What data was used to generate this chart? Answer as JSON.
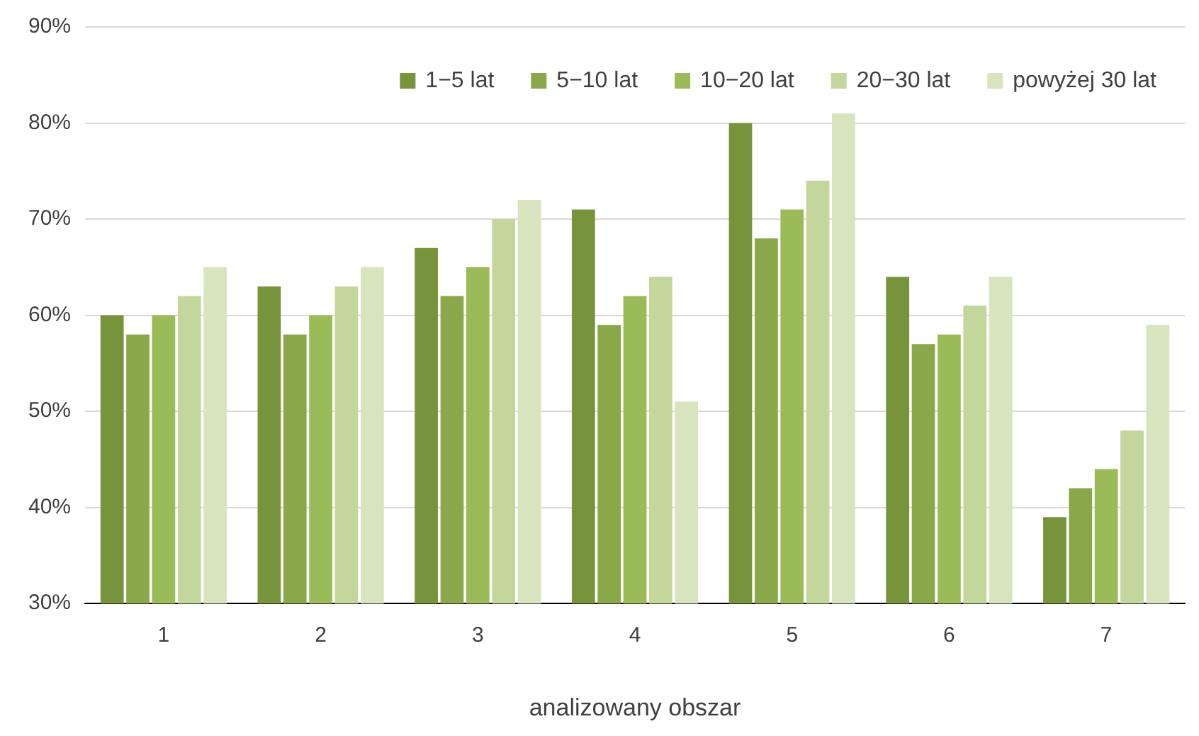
{
  "chart_data": {
    "type": "bar",
    "xlabel": "analizowany obszar",
    "categories": [
      "1",
      "2",
      "3",
      "4",
      "5",
      "6",
      "7"
    ],
    "series": [
      {
        "name": "1−5 lat",
        "color": "#77933c",
        "values": [
          60,
          63,
          67,
          71,
          80,
          64,
          39
        ]
      },
      {
        "name": "5−10 lat",
        "color": "#8aa84a",
        "values": [
          58,
          58,
          62,
          59,
          68,
          57,
          42
        ]
      },
      {
        "name": "10−20 lat",
        "color": "#9bbb59",
        "values": [
          60,
          60,
          65,
          62,
          71,
          58,
          44
        ]
      },
      {
        "name": "20−30 lat",
        "color": "#c3d69b",
        "values": [
          62,
          63,
          70,
          64,
          74,
          61,
          48
        ]
      },
      {
        "name": "powyżej 30 lat",
        "color": "#d7e4bd",
        "values": [
          65,
          65,
          72,
          51,
          81,
          64,
          59
        ]
      }
    ],
    "ylim": [
      30,
      90
    ],
    "yticks": [
      {
        "value": 30,
        "label": "30%"
      },
      {
        "value": 40,
        "label": "40%"
      },
      {
        "value": 50,
        "label": "50%"
      },
      {
        "value": 60,
        "label": "60%"
      },
      {
        "value": 70,
        "label": "70%"
      },
      {
        "value": 80,
        "label": "80%"
      },
      {
        "value": 90,
        "label": "90%"
      }
    ],
    "grid": "y",
    "legend": "top right"
  }
}
